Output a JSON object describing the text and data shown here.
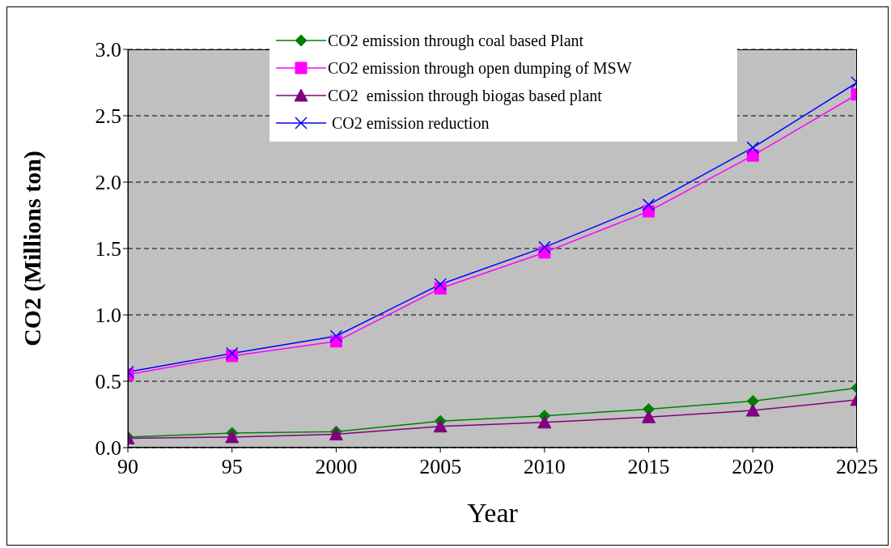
{
  "chart_data": {
    "type": "line",
    "xlabel": "Year",
    "ylabel": "CO2 (Millions ton)",
    "categories": [
      "90",
      "95",
      "2000",
      "2005",
      "2010",
      "2015",
      "2020",
      "2025"
    ],
    "series": [
      {
        "name": "CO2 emission through coal based Plant",
        "color": "#008000",
        "marker": "diamond",
        "values": [
          0.08,
          0.11,
          0.12,
          0.2,
          0.24,
          0.29,
          0.35,
          0.45
        ]
      },
      {
        "name": "CO2 emission through open dumping of MSW",
        "color": "#ff00ff",
        "marker": "square",
        "values": [
          0.55,
          0.69,
          0.8,
          1.2,
          1.47,
          1.78,
          2.2,
          2.66
        ]
      },
      {
        "name": "CO2  emission through biogas based plant",
        "color": "#800080",
        "marker": "triangle",
        "values": [
          0.07,
          0.08,
          0.1,
          0.16,
          0.19,
          0.23,
          0.28,
          0.36
        ]
      },
      {
        "name": " CO2 emission reduction",
        "color": "#0000ff",
        "marker": "cross",
        "values": [
          0.57,
          0.71,
          0.84,
          1.23,
          1.51,
          1.83,
          2.26,
          2.75
        ]
      }
    ],
    "ylim": [
      0,
      3
    ],
    "yticks": [
      {
        "value": 0,
        "label": "0.0"
      },
      {
        "value": 0.5,
        "label": "0.5"
      },
      {
        "value": 1,
        "label": "1.0"
      },
      {
        "value": 1.5,
        "label": "1.5"
      },
      {
        "value": 2,
        "label": "2.0"
      },
      {
        "value": 2.5,
        "label": "2.5"
      },
      {
        "value": 3,
        "label": "3.0"
      }
    ],
    "grid": "y",
    "legend": "top"
  }
}
